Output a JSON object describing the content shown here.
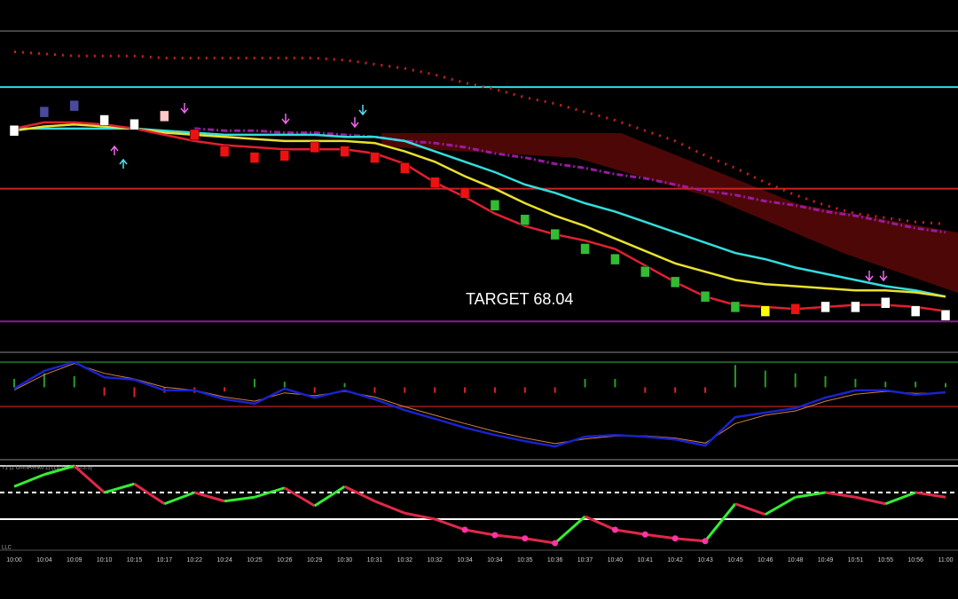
{
  "chart_data": [
    {
      "type": "line",
      "annotation": "TARGET 68.04",
      "ylim": [
        67.9,
        69.44
      ],
      "hlines": [
        {
          "value": 69.17,
          "color": "#33dddd"
        },
        {
          "value": 68.68,
          "color": "#cc2222"
        },
        {
          "value": 68.04,
          "color": "#8a1a9a"
        }
      ],
      "bricks": {
        "values": [
          68.96,
          69.05,
          69.08,
          69.01,
          68.99,
          69.03,
          68.94,
          68.86,
          68.83,
          68.84,
          68.88,
          68.86,
          68.83,
          68.78,
          68.71,
          68.66,
          68.6,
          68.53,
          68.46,
          68.39,
          68.34,
          68.28,
          68.23,
          68.16,
          68.11,
          68.09,
          68.1,
          68.11,
          68.11,
          68.13,
          68.09,
          68.07
        ],
        "colors": [
          "#ffffff",
          "#4a4a9a",
          "#4a4a9a",
          "#ffffff",
          "#ffffff",
          "#ffc8c8",
          "#ee1111",
          "#ee1111",
          "#ee1111",
          "#ee1111",
          "#ee1111",
          "#ee1111",
          "#ee1111",
          "#ee1111",
          "#ee1111",
          "#ee1111",
          "#33bb33",
          "#33bb33",
          "#33bb33",
          "#33bb33",
          "#33bb33",
          "#33bb33",
          "#33bb33",
          "#33bb33",
          "#33bb33",
          "#ffff00",
          "#ee1111",
          "#ffffff",
          "#ffffff",
          "#ffffff",
          "#ffffff",
          "#ffffff"
        ]
      },
      "series": [
        {
          "color": "#cc1f1f",
          "style": "dotted",
          "values": [
            69.34,
            69.33,
            69.32,
            69.32,
            69.32,
            69.31,
            69.31,
            69.31,
            69.31,
            69.31,
            69.31,
            69.3,
            69.28,
            69.26,
            69.23,
            69.19,
            69.16,
            69.12,
            69.09,
            69.05,
            69.01,
            68.96,
            68.91,
            68.84,
            68.78,
            68.71,
            68.65,
            68.6,
            68.56,
            68.54,
            68.52,
            68.51
          ]
        },
        {
          "color": "#9a1aa0",
          "style": "dashdot",
          "values": [
            null,
            null,
            null,
            null,
            null,
            null,
            68.97,
            68.96,
            68.96,
            68.95,
            68.95,
            68.94,
            68.93,
            68.91,
            68.9,
            68.88,
            68.85,
            68.83,
            68.8,
            68.78,
            68.75,
            68.73,
            68.7,
            68.67,
            68.65,
            68.62,
            68.6,
            68.57,
            68.55,
            68.52,
            68.49,
            68.47
          ]
        },
        {
          "color": "#33dddd",
          "style": "solid",
          "values": [
            68.97,
            68.97,
            68.97,
            68.97,
            68.97,
            68.96,
            68.95,
            68.94,
            68.94,
            68.94,
            68.94,
            68.93,
            68.93,
            68.91,
            68.86,
            68.81,
            68.76,
            68.7,
            68.66,
            68.61,
            68.57,
            68.52,
            68.47,
            68.42,
            68.37,
            68.34,
            68.3,
            68.27,
            68.24,
            68.21,
            68.19,
            68.16
          ]
        },
        {
          "color": "#e8e030",
          "style": "solid",
          "values": [
            68.96,
            68.98,
            68.99,
            68.98,
            68.97,
            68.95,
            68.94,
            68.93,
            68.92,
            68.91,
            68.91,
            68.91,
            68.9,
            68.86,
            68.81,
            68.74,
            68.68,
            68.61,
            68.55,
            68.5,
            68.44,
            68.38,
            68.32,
            68.28,
            68.24,
            68.22,
            68.21,
            68.2,
            68.19,
            68.19,
            68.18,
            68.16
          ]
        },
        {
          "color": "#e02030",
          "style": "solid",
          "values": [
            68.97,
            69.0,
            69.0,
            68.99,
            68.97,
            68.94,
            68.91,
            68.89,
            68.88,
            68.87,
            68.87,
            68.87,
            68.85,
            68.8,
            68.71,
            68.64,
            68.56,
            68.5,
            68.46,
            68.43,
            68.39,
            68.31,
            68.23,
            68.16,
            68.12,
            68.11,
            68.1,
            68.11,
            68.12,
            68.12,
            68.11,
            68.09
          ]
        }
      ]
    },
    {
      "type": "line",
      "ylim": [
        -2.5,
        1
      ],
      "hlines": [
        {
          "value": 0.9,
          "color": "#1f5f1f"
        },
        {
          "value": -0.69,
          "color": "#7a1a1a"
        }
      ],
      "histogram": {
        "colors": [
          "#2a9a2a",
          "#dd2222"
        ],
        "values": [
          0.3,
          0.5,
          0.4,
          -0.3,
          -0.35,
          -0.2,
          -0.2,
          -0.15,
          0.3,
          0.2,
          -0.2,
          0.15,
          -0.2,
          -0.2,
          -0.2,
          -0.2,
          -0.2,
          -0.2,
          -0.2,
          0.3,
          0.3,
          -0.2,
          -0.2,
          -0.2,
          0.8,
          0.6,
          0.5,
          0.4,
          0.3,
          0.2,
          0.2,
          0.15
        ]
      },
      "series": [
        {
          "color": "#d08040",
          "style": "thin",
          "values": [
            -0.1,
            0.45,
            0.85,
            0.5,
            0.3,
            0.0,
            -0.1,
            -0.35,
            -0.5,
            -0.2,
            -0.3,
            -0.15,
            -0.35,
            -0.7,
            -1.0,
            -1.3,
            -1.58,
            -1.82,
            -2.02,
            -1.85,
            -1.75,
            -1.74,
            -1.82,
            -2.0,
            -1.3,
            -1.0,
            -0.85,
            -0.5,
            -0.25,
            -0.15,
            -0.22,
            -0.2
          ]
        },
        {
          "color": "#1a22cc",
          "style": "solid",
          "values": [
            -0.05,
            0.59,
            0.9,
            0.36,
            0.27,
            -0.11,
            -0.11,
            -0.43,
            -0.59,
            -0.05,
            -0.37,
            -0.11,
            -0.43,
            -0.82,
            -1.13,
            -1.45,
            -1.71,
            -1.93,
            -2.12,
            -1.77,
            -1.71,
            -1.77,
            -1.87,
            -2.09,
            -1.07,
            -0.91,
            -0.75,
            -0.37,
            -0.11,
            -0.11,
            -0.27,
            -0.18
          ]
        }
      ]
    },
    {
      "type": "line",
      "subtitle": "T1 (2 OmniRenko 1) (15,14,70,30,3.5)",
      "footer": "LLC",
      "ylim": [
        -10,
        110
      ],
      "categories": [
        "10:00",
        "10:04",
        "10:09",
        "10:10",
        "10:15",
        "10:17",
        "10:22",
        "10:24",
        "10:25",
        "10:26",
        "10:29",
        "10:30",
        "10:31",
        "10:32",
        "10:32",
        "10:34",
        "10:34",
        "10:35",
        "10:36",
        "10:37",
        "10:40",
        "10:41",
        "10:42",
        "10:43",
        "10:45",
        "10:46",
        "10:48",
        "10:49",
        "10:51",
        "10:55",
        "10:56",
        "11:00"
      ],
      "hlines": [
        {
          "value": 70,
          "color": "#ffffff",
          "style": "dashed"
        },
        {
          "value": 30,
          "color": "#ffffff",
          "style": "solid"
        }
      ],
      "colors": [
        "#33ee33",
        "#e02848"
      ],
      "dot_color": "#ff33aa",
      "series": [
        {
          "values": [
            79,
            97,
            110,
            70,
            83,
            53,
            70,
            57,
            63,
            77,
            50,
            79,
            57,
            39,
            30,
            14,
            6,
            1,
            -6,
            34,
            14,
            7,
            1,
            -3,
            53,
            37,
            63,
            70,
            63,
            53,
            70,
            63
          ]
        }
      ]
    }
  ]
}
